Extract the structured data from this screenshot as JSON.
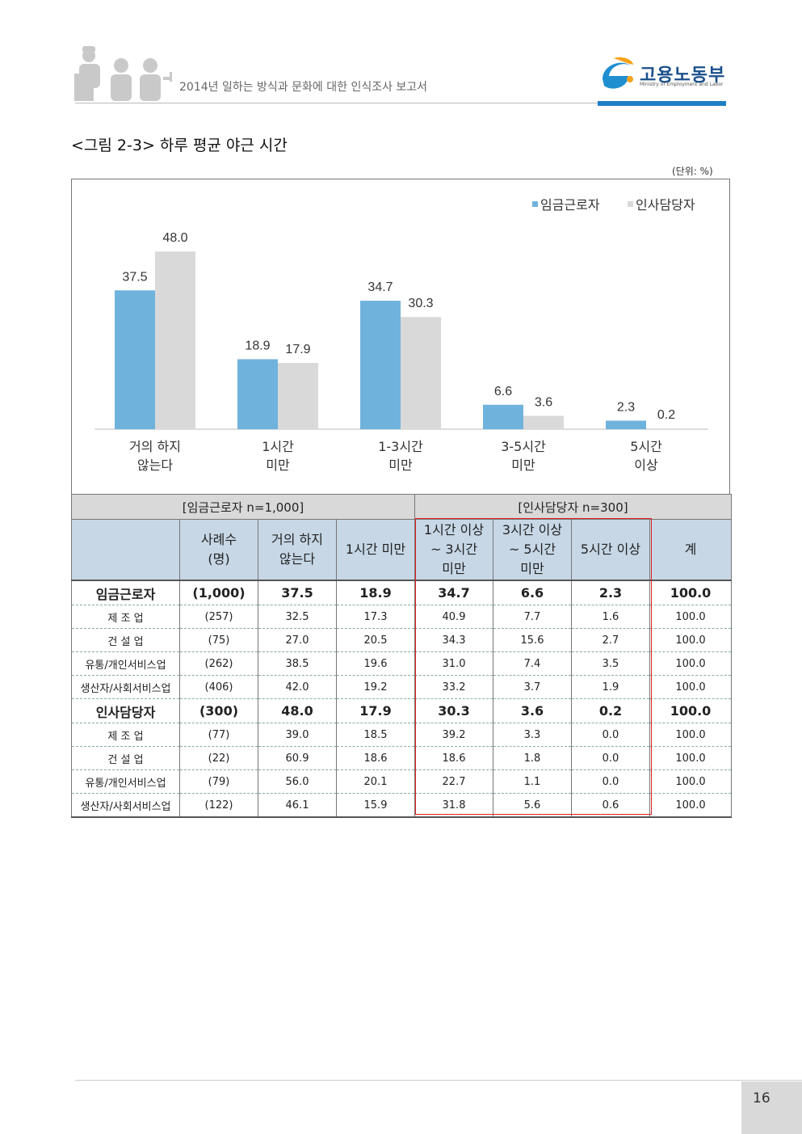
{
  "header": {
    "report_title": "2014년 일하는 방식과 문화에 대한 인식조사 보고서",
    "logo_name": "고용노동부",
    "logo_sub": "Ministry of Employment and Labor"
  },
  "figure": {
    "title": "<그림 2-3> 하루 평균 야근 시간",
    "unit": "(단위: %)"
  },
  "chart_data": {
    "type": "bar",
    "categories": [
      [
        "거의 하지",
        "않는다"
      ],
      [
        "1시간",
        "미만"
      ],
      [
        "1-3시간",
        "미만"
      ],
      [
        "3-5시간",
        "미만"
      ],
      [
        "5시간",
        "이상"
      ]
    ],
    "series": [
      {
        "name": "임금근로자",
        "values": [
          37.5,
          18.9,
          34.7,
          6.6,
          2.3
        ],
        "color": "#6fb3dd"
      },
      {
        "name": "인사담당자",
        "values": [
          48.0,
          17.9,
          30.3,
          3.6,
          0.2
        ],
        "color": "#d9d9d9"
      }
    ],
    "value_labels": [
      [
        "37.5",
        "18.9",
        "34.7",
        "6.6",
        "2.3"
      ],
      [
        "48.0",
        "17.9",
        "30.3",
        "3.6",
        "0.2"
      ]
    ],
    "ylim": [
      0,
      50
    ],
    "legend": "top-right",
    "grid": false
  },
  "table": {
    "group_left": "[임금근로자 n=1,000]",
    "group_right": "[인사담당자 n=300]",
    "headers": [
      [
        ""
      ],
      [
        "사례수",
        "(명)"
      ],
      [
        "거의 하지",
        "않는다"
      ],
      [
        "1시간 미만"
      ],
      [
        "1시간 이상",
        "~ 3시간",
        "미만"
      ],
      [
        "3시간 이상",
        "~ 5시간",
        "미만"
      ],
      [
        "5시간 이상"
      ],
      [
        "계"
      ]
    ],
    "rows": [
      {
        "main": true,
        "cells": [
          "임금근로자",
          "(1,000)",
          "37.5",
          "18.9",
          "34.7",
          "6.6",
          "2.3",
          "100.0"
        ]
      },
      {
        "main": false,
        "cells": [
          "제 조 업",
          "(257)",
          "32.5",
          "17.3",
          "40.9",
          "7.7",
          "1.6",
          "100.0"
        ]
      },
      {
        "main": false,
        "cells": [
          "건 설 업",
          "(75)",
          "27.0",
          "20.5",
          "34.3",
          "15.6",
          "2.7",
          "100.0"
        ]
      },
      {
        "main": false,
        "cells": [
          "유통/개인서비스업",
          "(262)",
          "38.5",
          "19.6",
          "31.0",
          "7.4",
          "3.5",
          "100.0"
        ]
      },
      {
        "main": false,
        "cells": [
          "생산자/사회서비스업",
          "(406)",
          "42.0",
          "19.2",
          "33.2",
          "3.7",
          "1.9",
          "100.0"
        ]
      },
      {
        "main": true,
        "cells": [
          "인사담당자",
          "(300)",
          "48.0",
          "17.9",
          "30.3",
          "3.6",
          "0.2",
          "100.0"
        ]
      },
      {
        "main": false,
        "cells": [
          "제 조 업",
          "(77)",
          "39.0",
          "18.5",
          "39.2",
          "3.3",
          "0.0",
          "100.0"
        ]
      },
      {
        "main": false,
        "cells": [
          "건 설 업",
          "(22)",
          "60.9",
          "18.6",
          "18.6",
          "1.8",
          "0.0",
          "100.0"
        ]
      },
      {
        "main": false,
        "cells": [
          "유통/개인서비스업",
          "(79)",
          "56.0",
          "20.1",
          "22.7",
          "1.1",
          "0.0",
          "100.0"
        ]
      },
      {
        "main": false,
        "cells": [
          "생산자/사회서비스업",
          "(122)",
          "46.1",
          "15.9",
          "31.8",
          "5.6",
          "0.6",
          "100.0"
        ]
      }
    ]
  },
  "footer": {
    "page_number": "16"
  }
}
